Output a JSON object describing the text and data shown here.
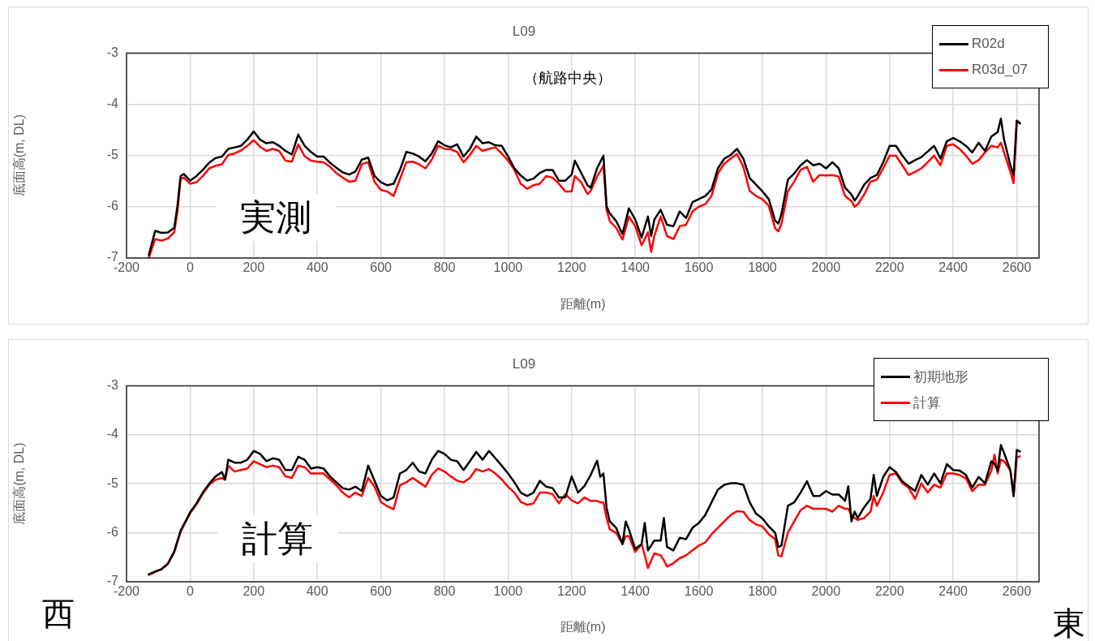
{
  "chart_data": [
    {
      "type": "line",
      "title": "L09",
      "xlabel": "距離(m)",
      "ylabel": "底面高(m, DL)",
      "annotations": [
        "（航路中央）",
        "実測"
      ],
      "x": [
        -130,
        -110,
        -90,
        -70,
        -50,
        -40,
        -30,
        -20,
        0,
        20,
        40,
        60,
        80,
        100,
        120,
        140,
        160,
        180,
        200,
        220,
        240,
        260,
        280,
        300,
        320,
        340,
        360,
        380,
        400,
        420,
        440,
        460,
        480,
        500,
        520,
        540,
        560,
        580,
        600,
        620,
        640,
        660,
        680,
        700,
        720,
        740,
        760,
        780,
        800,
        820,
        840,
        860,
        880,
        900,
        920,
        940,
        960,
        980,
        1000,
        1020,
        1040,
        1060,
        1080,
        1100,
        1120,
        1140,
        1160,
        1180,
        1200,
        1210,
        1230,
        1250,
        1260,
        1280,
        1300,
        1310,
        1320,
        1340,
        1360,
        1380,
        1400,
        1420,
        1440,
        1450,
        1460,
        1480,
        1500,
        1520,
        1540,
        1560,
        1580,
        1600,
        1620,
        1640,
        1660,
        1680,
        1700,
        1720,
        1740,
        1760,
        1780,
        1800,
        1820,
        1840,
        1850,
        1860,
        1880,
        1900,
        1920,
        1940,
        1960,
        1980,
        2000,
        2020,
        2040,
        2060,
        2080,
        2090,
        2100,
        2120,
        2140,
        2160,
        2180,
        2200,
        2220,
        2240,
        2260,
        2280,
        2300,
        2320,
        2340,
        2360,
        2380,
        2400,
        2420,
        2440,
        2460,
        2480,
        2500,
        2520,
        2540,
        2550,
        2560,
        2580,
        2590,
        2600,
        2610
      ],
      "series": [
        {
          "name": "R02d",
          "color": "#000000",
          "values": [
            -6.94,
            -6.47,
            -6.51,
            -6.5,
            -6.41,
            -5.99,
            -5.4,
            -5.36,
            -5.49,
            -5.4,
            -5.28,
            -5.14,
            -5.05,
            -5.02,
            -4.87,
            -4.84,
            -4.81,
            -4.69,
            -4.53,
            -4.69,
            -4.76,
            -4.74,
            -4.81,
            -4.91,
            -4.98,
            -4.59,
            -4.81,
            -4.93,
            -5.02,
            -5.02,
            -5.14,
            -5.24,
            -5.33,
            -5.37,
            -5.31,
            -5.08,
            -5.04,
            -5.4,
            -5.52,
            -5.58,
            -5.55,
            -5.28,
            -4.93,
            -4.96,
            -5.02,
            -5.11,
            -4.96,
            -4.72,
            -4.8,
            -4.84,
            -4.78,
            -5.02,
            -4.87,
            -4.63,
            -4.76,
            -4.74,
            -4.8,
            -4.81,
            -5.02,
            -5.25,
            -5.39,
            -5.49,
            -5.45,
            -5.34,
            -5.28,
            -5.28,
            -5.49,
            -5.49,
            -5.37,
            -5.1,
            -5.34,
            -5.58,
            -5.63,
            -5.25,
            -5.0,
            -6.0,
            -6.13,
            -6.28,
            -6.53,
            -6.03,
            -6.25,
            -6.6,
            -6.19,
            -6.57,
            -6.25,
            -6.06,
            -6.35,
            -6.38,
            -6.09,
            -6.22,
            -5.91,
            -5.85,
            -5.79,
            -5.66,
            -5.25,
            -5.06,
            -4.99,
            -4.87,
            -5.06,
            -5.44,
            -5.57,
            -5.7,
            -5.85,
            -6.27,
            -6.33,
            -6.14,
            -5.47,
            -5.35,
            -5.19,
            -5.09,
            -5.19,
            -5.16,
            -5.25,
            -5.13,
            -5.25,
            -5.63,
            -5.76,
            -5.88,
            -5.79,
            -5.57,
            -5.44,
            -5.38,
            -5.13,
            -4.81,
            -4.81,
            -5.0,
            -5.16,
            -5.09,
            -5.03,
            -4.92,
            -4.81,
            -5.06,
            -4.72,
            -4.66,
            -4.72,
            -4.81,
            -4.94,
            -4.75,
            -4.91,
            -4.63,
            -4.54,
            -4.28,
            -4.69,
            -5.19,
            -5.38,
            -4.32,
            -4.37
          ]
        },
        {
          "name": "R03d_07",
          "color": "#ff0000",
          "values": [
            -7.0,
            -6.63,
            -6.66,
            -6.62,
            -6.5,
            -6.1,
            -5.46,
            -5.43,
            -5.55,
            -5.52,
            -5.4,
            -5.25,
            -5.2,
            -5.17,
            -4.99,
            -4.96,
            -4.9,
            -4.81,
            -4.7,
            -4.83,
            -4.91,
            -4.87,
            -4.91,
            -5.1,
            -5.12,
            -4.78,
            -5.01,
            -5.1,
            -5.12,
            -5.13,
            -5.22,
            -5.34,
            -5.43,
            -5.51,
            -5.49,
            -5.17,
            -5.13,
            -5.51,
            -5.67,
            -5.7,
            -5.79,
            -5.46,
            -5.13,
            -5.12,
            -5.17,
            -5.25,
            -5.08,
            -4.81,
            -4.87,
            -4.88,
            -4.93,
            -5.13,
            -4.99,
            -4.81,
            -4.91,
            -4.87,
            -4.84,
            -4.96,
            -5.1,
            -5.28,
            -5.55,
            -5.65,
            -5.58,
            -5.55,
            -5.4,
            -5.43,
            -5.55,
            -5.7,
            -5.7,
            -5.4,
            -5.52,
            -5.75,
            -5.69,
            -5.41,
            -5.2,
            -6.06,
            -6.28,
            -6.41,
            -6.64,
            -6.19,
            -6.38,
            -6.75,
            -6.5,
            -6.88,
            -6.57,
            -6.19,
            -6.57,
            -6.63,
            -6.38,
            -6.35,
            -6.09,
            -6.0,
            -5.95,
            -5.79,
            -5.35,
            -5.16,
            -5.06,
            -4.97,
            -5.22,
            -5.69,
            -5.79,
            -5.85,
            -5.98,
            -6.42,
            -6.48,
            -6.33,
            -5.7,
            -5.51,
            -5.28,
            -5.22,
            -5.51,
            -5.38,
            -5.39,
            -5.38,
            -5.41,
            -5.79,
            -5.89,
            -6.0,
            -5.95,
            -5.76,
            -5.51,
            -5.47,
            -5.25,
            -5.0,
            -5.0,
            -5.19,
            -5.38,
            -5.32,
            -5.25,
            -5.13,
            -5.0,
            -5.19,
            -4.81,
            -4.78,
            -4.87,
            -5.0,
            -5.16,
            -5.09,
            -4.94,
            -4.81,
            -4.84,
            -4.75,
            -4.94,
            -5.32,
            -5.54,
            -4.32,
            -4.37
          ]
        }
      ],
      "xlim": [
        -200,
        2670
      ],
      "ylim": [
        -7,
        -3
      ],
      "xticks": [
        -200,
        0,
        200,
        400,
        600,
        800,
        1000,
        1200,
        1400,
        1600,
        1800,
        2000,
        2200,
        2400,
        2600
      ],
      "yticks": [
        -7,
        -6,
        -5,
        -4,
        -3
      ],
      "grid": true,
      "legend": "top right"
    },
    {
      "type": "line",
      "title": "L09",
      "xlabel": "距離(m)",
      "ylabel": "底面高(m, DL)",
      "annotations": [
        "計算",
        "西",
        "東"
      ],
      "x": [
        -130,
        -110,
        -90,
        -70,
        -50,
        -30,
        -10,
        0,
        20,
        40,
        60,
        80,
        100,
        110,
        120,
        140,
        160,
        180,
        200,
        220,
        240,
        260,
        280,
        300,
        320,
        340,
        360,
        380,
        400,
        420,
        440,
        460,
        480,
        500,
        520,
        540,
        560,
        580,
        600,
        620,
        640,
        660,
        680,
        700,
        720,
        740,
        760,
        780,
        800,
        820,
        840,
        860,
        880,
        900,
        920,
        940,
        960,
        980,
        1000,
        1020,
        1040,
        1060,
        1080,
        1100,
        1120,
        1140,
        1160,
        1180,
        1200,
        1220,
        1240,
        1260,
        1280,
        1290,
        1300,
        1310,
        1320,
        1340,
        1360,
        1370,
        1380,
        1400,
        1420,
        1430,
        1440,
        1460,
        1480,
        1490,
        1500,
        1520,
        1540,
        1560,
        1580,
        1600,
        1620,
        1640,
        1660,
        1680,
        1700,
        1720,
        1740,
        1760,
        1780,
        1800,
        1820,
        1840,
        1850,
        1860,
        1880,
        1900,
        1920,
        1940,
        1960,
        1980,
        2000,
        2020,
        2040,
        2060,
        2070,
        2080,
        2090,
        2100,
        2120,
        2140,
        2150,
        2160,
        2180,
        2200,
        2220,
        2240,
        2260,
        2280,
        2300,
        2320,
        2340,
        2360,
        2380,
        2400,
        2420,
        2440,
        2460,
        2480,
        2500,
        2520,
        2530,
        2540,
        2550,
        2560,
        2580,
        2590,
        2600,
        2610
      ],
      "series": [
        {
          "name": "初期地形",
          "color": "#000000",
          "values": [
            -6.85,
            -6.79,
            -6.74,
            -6.63,
            -6.38,
            -5.96,
            -5.71,
            -5.58,
            -5.4,
            -5.18,
            -5.0,
            -4.85,
            -4.76,
            -4.91,
            -4.51,
            -4.57,
            -4.57,
            -4.51,
            -4.33,
            -4.39,
            -4.54,
            -4.48,
            -4.51,
            -4.72,
            -4.72,
            -4.45,
            -4.51,
            -4.69,
            -4.66,
            -4.69,
            -4.85,
            -4.97,
            -5.09,
            -5.12,
            -5.06,
            -5.15,
            -4.63,
            -4.94,
            -5.25,
            -5.34,
            -5.28,
            -4.79,
            -4.72,
            -4.57,
            -4.75,
            -4.79,
            -4.51,
            -4.33,
            -4.39,
            -4.51,
            -4.54,
            -4.72,
            -4.54,
            -4.35,
            -4.51,
            -4.33,
            -4.48,
            -4.63,
            -4.79,
            -4.97,
            -5.18,
            -5.25,
            -5.18,
            -4.94,
            -5.06,
            -5.09,
            -5.28,
            -5.28,
            -4.85,
            -5.18,
            -5.05,
            -4.82,
            -4.53,
            -4.86,
            -4.79,
            -5.5,
            -5.77,
            -5.9,
            -6.23,
            -5.77,
            -5.93,
            -6.33,
            -6.23,
            -5.8,
            -6.36,
            -6.16,
            -6.16,
            -5.7,
            -6.29,
            -6.36,
            -6.1,
            -6.13,
            -5.9,
            -5.8,
            -5.64,
            -5.38,
            -5.12,
            -5.02,
            -4.99,
            -4.99,
            -5.02,
            -5.38,
            -5.61,
            -5.71,
            -5.87,
            -6.0,
            -6.29,
            -6.26,
            -5.45,
            -5.38,
            -5.18,
            -4.95,
            -5.25,
            -5.25,
            -5.15,
            -5.22,
            -5.22,
            -5.35,
            -5.05,
            -5.77,
            -5.57,
            -5.7,
            -5.48,
            -5.31,
            -4.82,
            -5.25,
            -4.86,
            -4.66,
            -4.76,
            -4.95,
            -5.05,
            -5.15,
            -4.82,
            -5.02,
            -4.79,
            -4.99,
            -4.6,
            -4.72,
            -4.73,
            -4.82,
            -5.08,
            -4.86,
            -4.99,
            -4.54,
            -4.6,
            -4.73,
            -4.21,
            -4.37,
            -4.73,
            -5.25,
            -4.31,
            -4.34
          ]
        },
        {
          "name": "計算",
          "color": "#ff0000",
          "values": [
            -6.86,
            -6.8,
            -6.75,
            -6.64,
            -6.4,
            -5.98,
            -5.73,
            -5.6,
            -5.42,
            -5.2,
            -5.02,
            -4.92,
            -4.88,
            -4.92,
            -4.63,
            -4.75,
            -4.72,
            -4.69,
            -4.54,
            -4.6,
            -4.66,
            -4.63,
            -4.66,
            -4.85,
            -4.88,
            -4.63,
            -4.66,
            -4.79,
            -4.79,
            -4.79,
            -4.91,
            -5.03,
            -5.18,
            -5.28,
            -5.18,
            -5.25,
            -4.88,
            -5.06,
            -5.37,
            -5.46,
            -5.52,
            -5.03,
            -4.97,
            -4.88,
            -4.97,
            -5.06,
            -4.82,
            -4.69,
            -4.75,
            -4.85,
            -4.94,
            -4.97,
            -4.88,
            -4.7,
            -4.75,
            -4.7,
            -4.79,
            -4.91,
            -5.06,
            -5.18,
            -5.37,
            -5.43,
            -5.4,
            -5.18,
            -5.18,
            -5.21,
            -5.4,
            -5.21,
            -5.34,
            -5.4,
            -5.28,
            -5.35,
            -5.35,
            -5.38,
            -5.38,
            -5.7,
            -5.93,
            -6.0,
            -6.23,
            -6.07,
            -6.07,
            -6.39,
            -6.23,
            -6.46,
            -6.72,
            -6.42,
            -6.46,
            -6.56,
            -6.69,
            -6.62,
            -6.52,
            -6.46,
            -6.36,
            -6.26,
            -6.2,
            -6.03,
            -5.9,
            -5.77,
            -5.64,
            -5.56,
            -5.57,
            -5.74,
            -5.83,
            -5.87,
            -6.03,
            -6.13,
            -6.46,
            -6.48,
            -6.0,
            -5.77,
            -5.54,
            -5.45,
            -5.51,
            -5.51,
            -5.51,
            -5.57,
            -5.45,
            -5.51,
            -5.51,
            -5.64,
            -5.7,
            -5.74,
            -5.7,
            -5.57,
            -5.25,
            -5.45,
            -5.18,
            -4.82,
            -4.79,
            -4.99,
            -5.08,
            -5.31,
            -4.99,
            -5.18,
            -5.02,
            -5.08,
            -4.79,
            -4.79,
            -4.82,
            -4.89,
            -5.15,
            -5.02,
            -5.02,
            -4.73,
            -4.41,
            -4.79,
            -4.51,
            -4.54,
            -4.73,
            -5.25,
            -4.47,
            -4.44
          ]
        }
      ],
      "xlim": [
        -200,
        2670
      ],
      "ylim": [
        -7,
        -3
      ],
      "xticks": [
        -200,
        0,
        200,
        400,
        600,
        800,
        1000,
        1200,
        1400,
        1600,
        1800,
        2000,
        2200,
        2400,
        2600
      ],
      "yticks": [
        -7,
        -6,
        -5,
        -4,
        -3
      ],
      "grid": true,
      "legend": "top right"
    }
  ]
}
